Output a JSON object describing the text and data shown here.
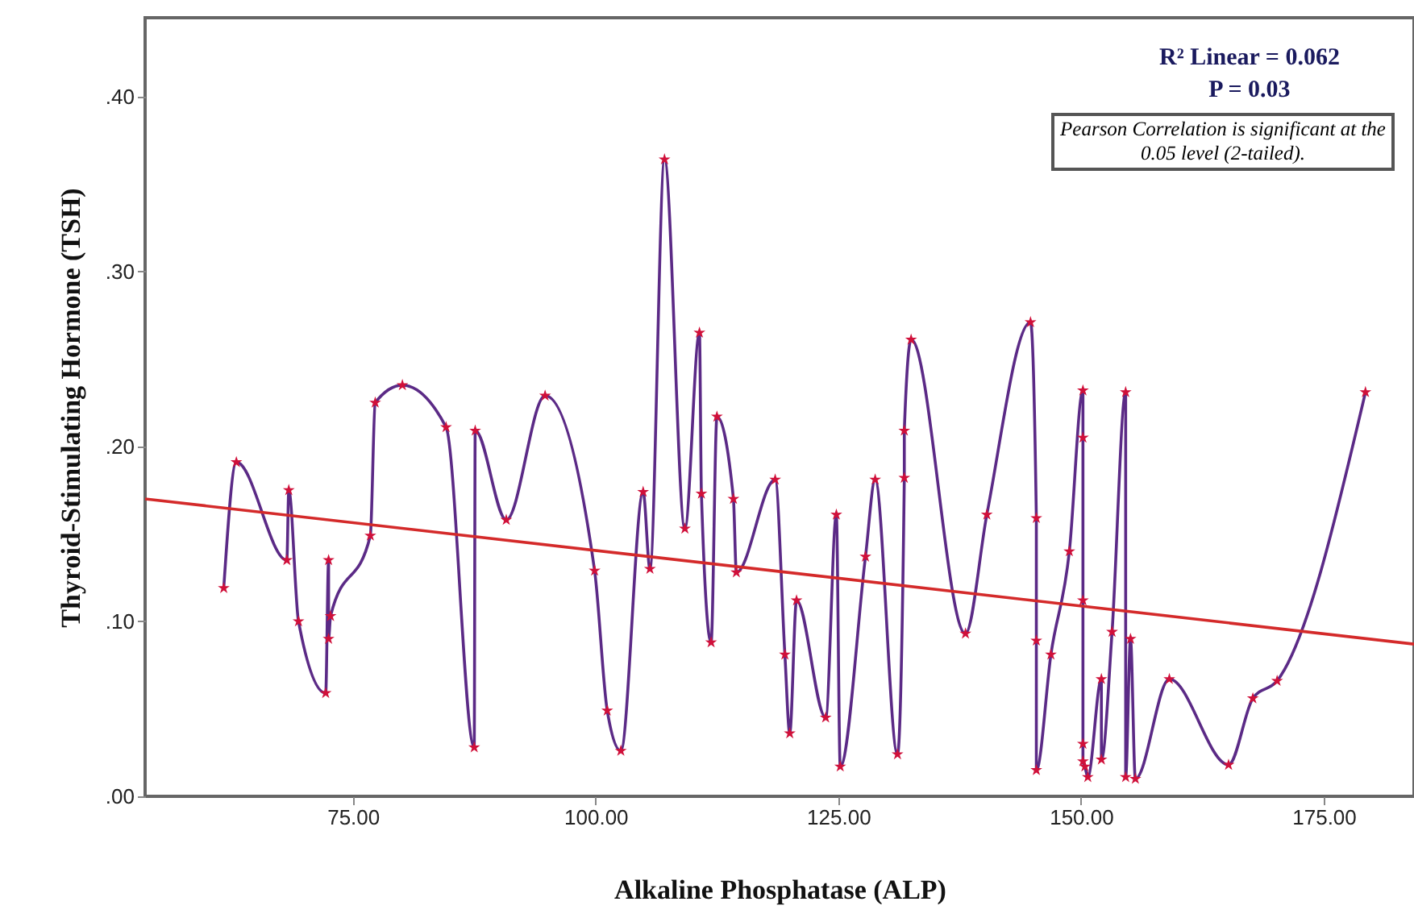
{
  "chart_data": {
    "type": "scatter",
    "xlabel": "Alkaline Phosphatase (ALP)",
    "ylabel": "Thyroid-Stimulating Hormone (TSH)",
    "annotations": [
      "R² Linear = 0.062",
      "P = 0.03",
      "Pearson Correlation is significant at the 0.05 level (2-tailed)."
    ],
    "xlim": [
      53.6,
      184.3
    ],
    "xticks": [
      {
        "value": 75,
        "label": "75.00"
      },
      {
        "value": 100,
        "label": "100.00"
      },
      {
        "value": 125,
        "label": "125.00"
      },
      {
        "value": 150,
        "label": "150.00"
      },
      {
        "value": 175,
        "label": "175.00"
      }
    ],
    "ylim": [
      0,
      0.445
    ],
    "yticks": [
      {
        "value": 0,
        "label": ".00"
      },
      {
        "value": 0.1,
        "label": ".10"
      },
      {
        "value": 0.2,
        "label": ".20"
      },
      {
        "value": 0.3,
        "label": ".30"
      },
      {
        "value": 0.4,
        "label": ".40"
      }
    ],
    "grid": false,
    "series": [
      {
        "type": "line",
        "marker": "none",
        "color": "#5b2a86",
        "x": [
          61.7,
          63.0,
          68.2,
          68.4,
          69.4,
          72.2,
          72.5,
          72.5,
          72.7,
          76.8,
          77.3,
          80.1,
          84.6,
          87.5,
          87.6,
          90.8,
          94.8,
          99.9,
          101.2,
          102.6,
          104.9,
          105.6,
          107.1,
          109.2,
          110.7,
          110.9,
          111.9,
          112.5,
          114.2,
          114.5,
          118.5,
          119.5,
          120.0,
          120.7,
          123.7,
          124.8,
          125.2,
          127.8,
          128.8,
          131.1,
          131.8,
          131.8,
          132.5,
          138.1,
          140.3,
          144.8,
          145.4,
          145.4,
          145.4,
          146.9,
          148.8,
          150.2,
          150.2,
          150.2,
          150.2,
          150.2,
          150.4,
          150.7,
          152.1,
          152.1,
          153.2,
          154.6,
          154.6,
          155.1,
          155.6,
          159.1,
          165.2,
          167.7,
          170.2,
          179.3
        ],
        "values": [
          0.119,
          0.191,
          0.135,
          0.175,
          0.1,
          0.059,
          0.135,
          0.09,
          0.103,
          0.149,
          0.225,
          0.235,
          0.211,
          0.028,
          0.209,
          0.158,
          0.229,
          0.129,
          0.049,
          0.026,
          0.174,
          0.13,
          0.364,
          0.153,
          0.265,
          0.173,
          0.088,
          0.217,
          0.17,
          0.128,
          0.181,
          0.081,
          0.036,
          0.112,
          0.045,
          0.161,
          0.017,
          0.137,
          0.181,
          0.024,
          0.182,
          0.209,
          0.261,
          0.093,
          0.161,
          0.271,
          0.159,
          0.089,
          0.015,
          0.081,
          0.14,
          0.232,
          0.205,
          0.112,
          0.03,
          0.02,
          0.017,
          0.011,
          0.067,
          0.021,
          0.094,
          0.231,
          0.011,
          0.09,
          0.01,
          0.067,
          0.018,
          0.056,
          0.066,
          0.231
        ]
      },
      {
        "type": "line",
        "marker": "none",
        "color": "#d42a2a",
        "x": [
          53.6,
          184.3
        ],
        "values": [
          0.17,
          0.087
        ]
      },
      {
        "marker": "star",
        "color": "#d0103a",
        "x": [
          61.7,
          63.0,
          68.2,
          68.4,
          69.4,
          72.2,
          72.5,
          72.5,
          72.7,
          76.8,
          77.3,
          80.1,
          84.6,
          87.5,
          87.6,
          90.8,
          94.8,
          99.9,
          101.2,
          102.6,
          104.9,
          105.6,
          107.1,
          109.2,
          110.7,
          110.9,
          111.9,
          112.5,
          114.2,
          114.5,
          118.5,
          119.5,
          120.0,
          120.7,
          123.7,
          124.8,
          125.2,
          127.8,
          128.8,
          131.1,
          131.8,
          131.8,
          132.5,
          138.1,
          140.3,
          144.8,
          145.4,
          145.4,
          145.4,
          146.9,
          148.8,
          150.2,
          150.2,
          150.2,
          150.2,
          150.2,
          150.4,
          150.7,
          152.1,
          152.1,
          153.2,
          154.6,
          154.6,
          155.1,
          155.6,
          159.1,
          165.2,
          167.7,
          170.2,
          179.3
        ],
        "values": [
          0.119,
          0.191,
          0.135,
          0.175,
          0.1,
          0.059,
          0.135,
          0.09,
          0.103,
          0.149,
          0.225,
          0.235,
          0.211,
          0.028,
          0.209,
          0.158,
          0.229,
          0.129,
          0.049,
          0.026,
          0.174,
          0.13,
          0.364,
          0.153,
          0.265,
          0.173,
          0.088,
          0.217,
          0.17,
          0.128,
          0.181,
          0.081,
          0.036,
          0.112,
          0.045,
          0.161,
          0.017,
          0.137,
          0.181,
          0.024,
          0.182,
          0.209,
          0.261,
          0.093,
          0.161,
          0.271,
          0.159,
          0.089,
          0.015,
          0.081,
          0.14,
          0.232,
          0.205,
          0.112,
          0.03,
          0.02,
          0.017,
          0.011,
          0.067,
          0.021,
          0.094,
          0.231,
          0.011,
          0.09,
          0.01,
          0.067,
          0.018,
          0.056,
          0.066,
          0.231
        ]
      }
    ]
  }
}
